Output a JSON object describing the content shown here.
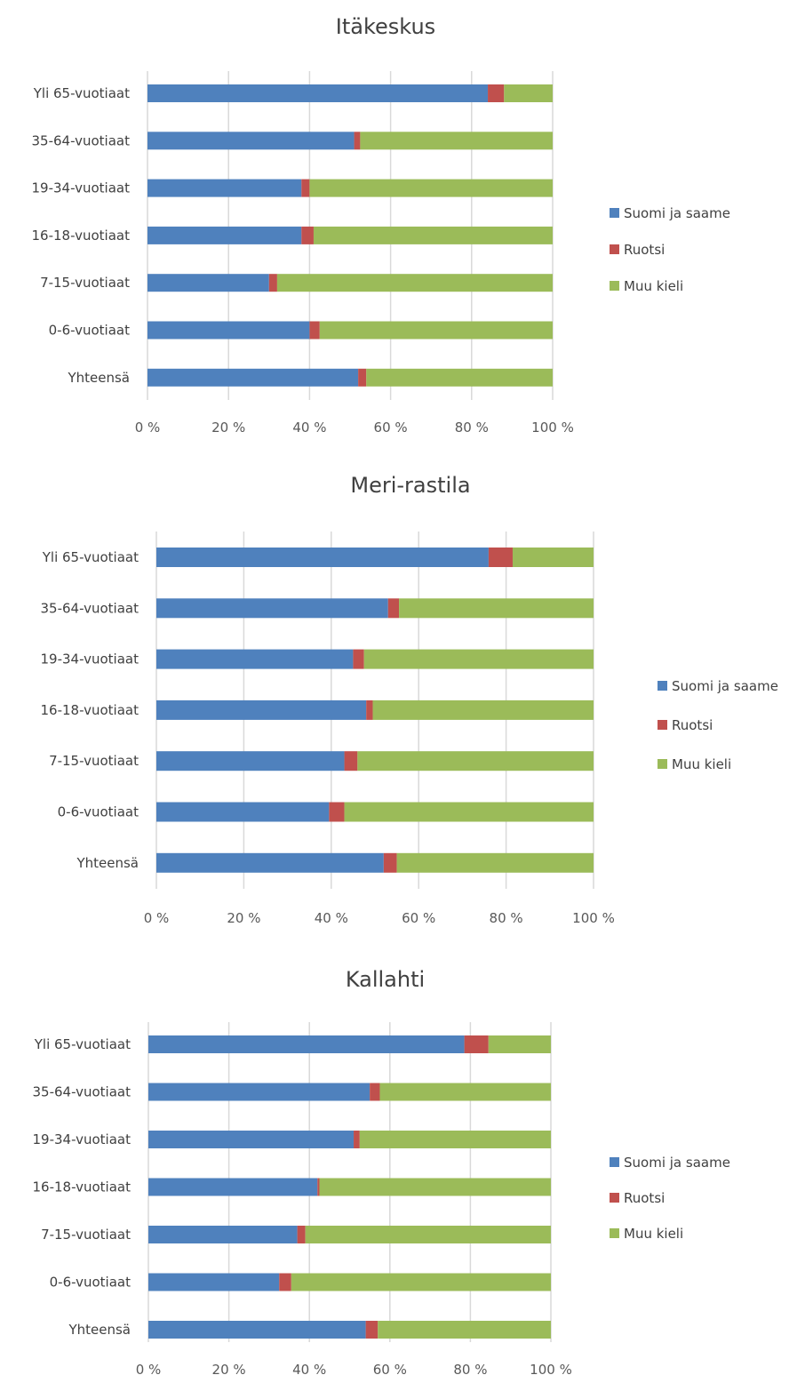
{
  "chart_data": [
    {
      "type": "bar",
      "orientation": "horizontal",
      "stacked": "percent",
      "title": "Itäkeskus",
      "categories": [
        "Yli 65-vuotiaat",
        "35-64-vuotiaat",
        "19-34-vuotiaat",
        "16-18-vuotiaat",
        "7-15-vuotiaat",
        "0-6-vuotiaat",
        "Yhteensä"
      ],
      "series": [
        {
          "name": "Suomi ja saame",
          "color": "#4f81bd",
          "values": [
            84,
            51,
            38,
            38,
            30,
            40,
            52
          ]
        },
        {
          "name": "Ruotsi",
          "color": "#c0504d",
          "values": [
            4,
            1.5,
            2,
            3,
            2,
            2.5,
            2
          ]
        },
        {
          "name": "Muu kieli",
          "color": "#9bbb59",
          "values": [
            12,
            47.5,
            60,
            59,
            68,
            57.5,
            46
          ]
        }
      ],
      "xticks": [
        "0 %",
        "20 %",
        "40 %",
        "60 %",
        "80 %",
        "100 %"
      ],
      "xlim": [
        0,
        100
      ],
      "grid": true,
      "legend_position": "right"
    },
    {
      "type": "bar",
      "orientation": "horizontal",
      "stacked": "percent",
      "title": "Meri-rastila",
      "categories": [
        "Yli 65-vuotiaat",
        "35-64-vuotiaat",
        "19-34-vuotiaat",
        "16-18-vuotiaat",
        "7-15-vuotiaat",
        "0-6-vuotiaat",
        "Yhteensä"
      ],
      "series": [
        {
          "name": "Suomi ja saame",
          "color": "#4f81bd",
          "values": [
            76,
            53,
            45,
            48,
            43,
            39.5,
            52
          ]
        },
        {
          "name": "Ruotsi",
          "color": "#c0504d",
          "values": [
            5.5,
            2.5,
            2.5,
            1.5,
            3,
            3.5,
            3
          ]
        },
        {
          "name": "Muu kieli",
          "color": "#9bbb59",
          "values": [
            18.5,
            44.5,
            52.5,
            50.5,
            54,
            57,
            45
          ]
        }
      ],
      "xticks": [
        "0 %",
        "20 %",
        "40 %",
        "60 %",
        "80 %",
        "100 %"
      ],
      "xlim": [
        0,
        100
      ],
      "grid": true,
      "legend_position": "right"
    },
    {
      "type": "bar",
      "orientation": "horizontal",
      "stacked": "percent",
      "title": "Kallahti",
      "categories": [
        "Yli 65-vuotiaat",
        "35-64-vuotiaat",
        "19-34-vuotiaat",
        "16-18-vuotiaat",
        "7-15-vuotiaat",
        "0-6-vuotiaat",
        "Yhteensä"
      ],
      "series": [
        {
          "name": "Suomi ja saame",
          "color": "#4f81bd",
          "values": [
            78.5,
            55,
            51,
            42,
            37,
            32.5,
            54
          ]
        },
        {
          "name": "Ruotsi",
          "color": "#c0504d",
          "values": [
            6,
            2.5,
            1.5,
            0.5,
            2,
            3,
            3
          ]
        },
        {
          "name": "Muu kieli",
          "color": "#9bbb59",
          "values": [
            15.5,
            42.5,
            47.5,
            57.5,
            61,
            64.5,
            43
          ]
        }
      ],
      "xticks": [
        "0 %",
        "20 %",
        "40 %",
        "60 %",
        "80 %",
        "100 %"
      ],
      "xlim": [
        0,
        100
      ],
      "grid": true,
      "legend_position": "right"
    }
  ]
}
